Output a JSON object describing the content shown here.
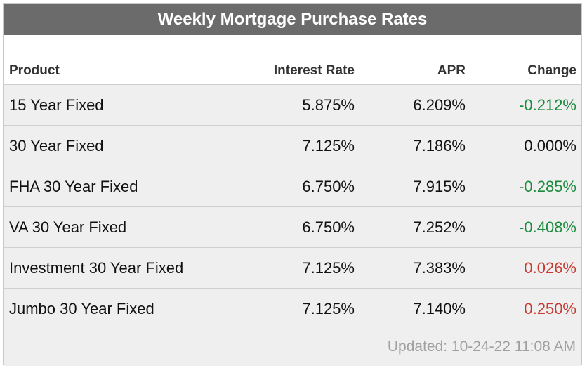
{
  "title": "Weekly Mortgage Purchase Rates",
  "columns": {
    "product": "Product",
    "rate": "Interest Rate",
    "apr": "APR",
    "change": "Change"
  },
  "rows": [
    {
      "product": "15 Year Fixed",
      "rate": "5.875%",
      "apr": "6.209%",
      "change": "-0.212%",
      "trend": "down"
    },
    {
      "product": "30 Year Fixed",
      "rate": "7.125%",
      "apr": "7.186%",
      "change": "0.000%",
      "trend": "flat"
    },
    {
      "product": "FHA 30 Year Fixed",
      "rate": "6.750%",
      "apr": "7.915%",
      "change": "-0.285%",
      "trend": "down"
    },
    {
      "product": "VA 30 Year Fixed",
      "rate": "6.750%",
      "apr": "7.252%",
      "change": "-0.408%",
      "trend": "down"
    },
    {
      "product": "Investment 30 Year Fixed",
      "rate": "7.125%",
      "apr": "7.383%",
      "change": "0.026%",
      "trend": "up"
    },
    {
      "product": "Jumbo 30 Year Fixed",
      "rate": "7.125%",
      "apr": "7.140%",
      "change": "0.250%",
      "trend": "up"
    }
  ],
  "footer": {
    "updated": "Updated: 10-24-22 11:08 AM"
  },
  "colors": {
    "title_bg": "#6b6b6b",
    "row_bg": "#efefef",
    "negative_change": "#1a8a3c",
    "positive_change": "#c73a32",
    "updated_text": "#a0a0a0"
  }
}
